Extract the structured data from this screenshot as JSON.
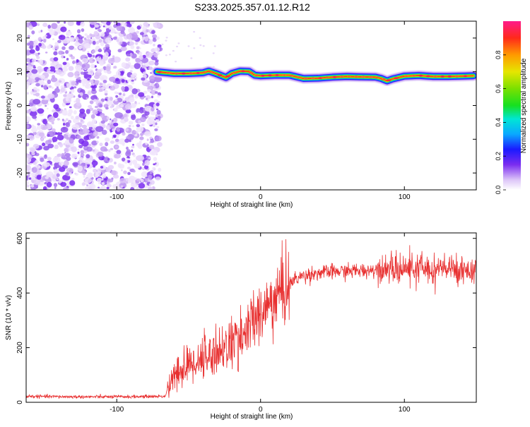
{
  "title": "S233.2025.357.01.12.R12",
  "chart_data": [
    {
      "type": "heatmap",
      "xlabel": "Height of straight line (km)",
      "ylabel": "Frequency (Hz)",
      "xlim": [
        -163,
        150
      ],
      "ylim": [
        -25,
        25
      ],
      "x_ticks": [
        -100,
        0,
        100
      ],
      "x_tick_labels": [
        "-100",
        "0",
        "100"
      ],
      "y_ticks": [
        20,
        10,
        0,
        -10,
        -20
      ],
      "y_tick_labels": [
        "20",
        "10",
        "0",
        "-10",
        "-20"
      ],
      "noise_region_x": [
        -163,
        -70
      ],
      "ridge": {
        "x": [
          -72,
          -60,
          -50,
          -40,
          -36,
          -30,
          -24,
          -20,
          -14,
          -8,
          -4,
          0,
          10,
          20,
          30,
          40,
          50,
          60,
          70,
          80,
          84,
          88,
          92,
          100,
          110,
          120,
          130,
          140,
          148
        ],
        "y": [
          10,
          9.5,
          9.5,
          9.7,
          10.2,
          9.3,
          8.3,
          9.5,
          10.2,
          10.1,
          9.0,
          8.8,
          9.0,
          9.0,
          8.0,
          8.1,
          8.4,
          8.6,
          8.5,
          8.4,
          8.0,
          7.3,
          7.9,
          8.7,
          8.9,
          8.6,
          8.6,
          8.7,
          8.8
        ]
      },
      "colorbar": {
        "label": "Normalized spectral amplitude",
        "range": [
          0,
          1
        ],
        "ticks": [
          0.0,
          0.2,
          0.4,
          0.6,
          0.8
        ],
        "tick_labels": [
          "0.0",
          "0.2",
          "0.4",
          "0.6",
          "0.8"
        ]
      }
    },
    {
      "type": "line",
      "xlabel": "Height of straight line (km)",
      "ylabel": "SNR (10 * v/v)",
      "xlim": [
        -163,
        150
      ],
      "ylim": [
        0,
        620
      ],
      "x_ticks": [
        -100,
        0,
        100
      ],
      "x_tick_labels": [
        "-100",
        "0",
        "100"
      ],
      "y_ticks": [
        0,
        200,
        400,
        600
      ],
      "y_tick_labels": [
        "0",
        "200",
        "400",
        "600"
      ],
      "color": "#e83030",
      "trend": {
        "x": [
          -163,
          -130,
          -100,
          -80,
          -66,
          -65,
          -55,
          -45,
          -35,
          -25,
          -15,
          -5,
          5,
          15,
          25,
          35,
          50,
          70,
          90,
          110,
          130,
          150
        ],
        "y": [
          22,
          20,
          20,
          21,
          22,
          50,
          120,
          150,
          175,
          200,
          230,
          290,
          350,
          410,
          455,
          470,
          478,
          482,
          487,
          490,
          488,
          485
        ]
      }
    }
  ]
}
